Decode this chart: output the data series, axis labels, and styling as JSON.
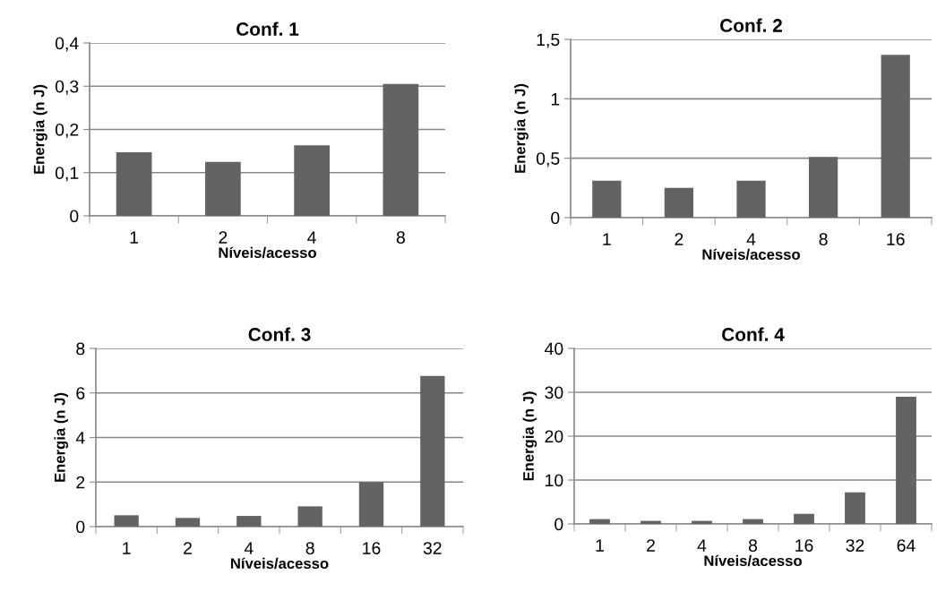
{
  "chart_data": [
    {
      "type": "bar",
      "title": "Conf. 1",
      "xlabel": "Níveis/acesso",
      "ylabel": "Energia (n J)",
      "categories": [
        "1",
        "2",
        "4",
        "8"
      ],
      "values": [
        0.147,
        0.125,
        0.163,
        0.305
      ],
      "color": "#636363",
      "ylim": [
        0,
        0.4
      ],
      "yticks": [
        0,
        {
          "value": 0.1,
          "label": "0,1"
        },
        {
          "value": 0.2,
          "label": "0,2"
        },
        {
          "value": 0.3,
          "label": "0,3"
        },
        {
          "value": 0.4,
          "label": "0,4"
        }
      ],
      "grid": "y"
    },
    {
      "type": "bar",
      "title": "Conf. 2",
      "xlabel": "Níveis/acesso",
      "ylabel": "Energia (n J)",
      "categories": [
        "1",
        "2",
        "4",
        "8",
        "16"
      ],
      "values": [
        0.31,
        0.25,
        0.31,
        0.51,
        1.37
      ],
      "color": "#636363",
      "ylim": [
        0,
        1.5
      ],
      "yticks": [
        0,
        {
          "value": 0.5,
          "label": "0,5"
        },
        1,
        {
          "value": 1.5,
          "label": "1,5"
        }
      ],
      "grid": "y"
    },
    {
      "type": "bar",
      "title": "Conf. 3",
      "xlabel": "Níveis/acesso",
      "ylabel": "Energia (n J)",
      "categories": [
        "1",
        "2",
        "4",
        "8",
        "16",
        "32"
      ],
      "values": [
        0.51,
        0.39,
        0.48,
        0.91,
        2.0,
        6.76
      ],
      "color": "#636363",
      "ylim": [
        0,
        8
      ],
      "yticks": [
        0,
        2,
        4,
        6,
        8
      ],
      "grid": "y"
    },
    {
      "type": "bar",
      "title": "Conf. 4",
      "xlabel": "Níveis/acesso",
      "ylabel": "Energia (n J)",
      "categories": [
        "1",
        "2",
        "4",
        "8",
        "16",
        "32",
        "64"
      ],
      "values": [
        1.1,
        0.7,
        0.7,
        1.1,
        2.3,
        7.2,
        29.0
      ],
      "color": "#636363",
      "ylim": [
        0,
        40
      ],
      "yticks": [
        0,
        10,
        20,
        30,
        40
      ],
      "grid": "y"
    }
  ]
}
